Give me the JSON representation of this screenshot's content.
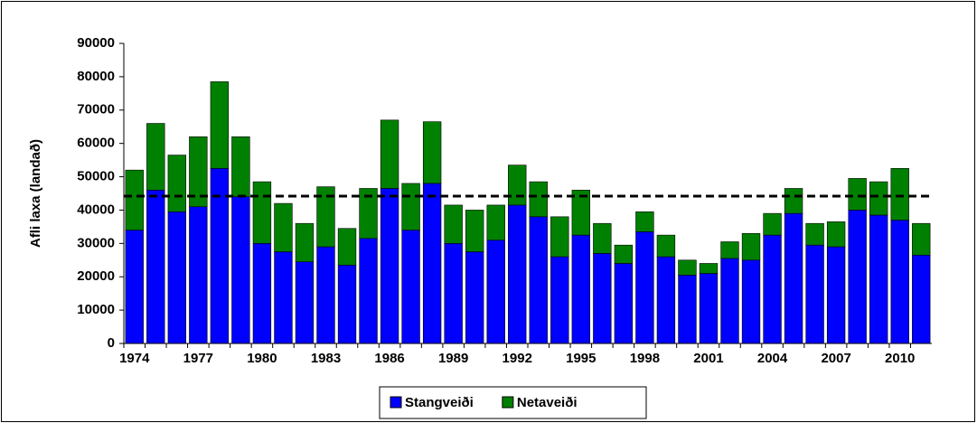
{
  "chart_data": {
    "type": "stacked_bar",
    "ylabel": "Afli laxa (landað)",
    "categories": [
      "1974",
      null,
      null,
      "1977",
      null,
      null,
      "1980",
      null,
      null,
      "1983",
      null,
      null,
      "1986",
      null,
      null,
      "1989",
      null,
      null,
      "1992",
      null,
      null,
      "1995",
      null,
      null,
      "1998",
      null,
      null,
      "2001",
      null,
      null,
      "2004",
      null,
      null,
      "2007",
      null,
      null,
      "2010",
      null
    ],
    "series": [
      {
        "name": "Stangveiði",
        "color": "#0000ff",
        "values": [
          34000,
          46000,
          39500,
          41000,
          52500,
          44000,
          30000,
          27500,
          24500,
          29000,
          23500,
          31500,
          46500,
          34000,
          48000,
          30000,
          27500,
          31000,
          41500,
          38000,
          26000,
          32500,
          27000,
          24000,
          33500,
          26000,
          20500,
          21000,
          25500,
          25000,
          32500,
          39000,
          29500,
          29000,
          40000,
          38500,
          37000,
          26500
        ]
      },
      {
        "name": "Netaveiði",
        "color": "#008000",
        "values": [
          18000,
          20000,
          17000,
          21000,
          26000,
          18000,
          18500,
          14500,
          11500,
          18000,
          11000,
          15000,
          20500,
          14000,
          18500,
          11500,
          12500,
          10500,
          12000,
          10500,
          12000,
          13500,
          9000,
          5500,
          6000,
          6500,
          4500,
          3000,
          5000,
          8000,
          6500,
          7500,
          6500,
          7500,
          9500,
          10000,
          15500,
          9500
        ]
      }
    ],
    "mean_line": 44200,
    "ylim": [
      0,
      90000
    ],
    "yticks": [
      0,
      10000,
      20000,
      30000,
      40000,
      50000,
      60000,
      70000,
      80000,
      90000
    ],
    "legend": "bottom"
  }
}
